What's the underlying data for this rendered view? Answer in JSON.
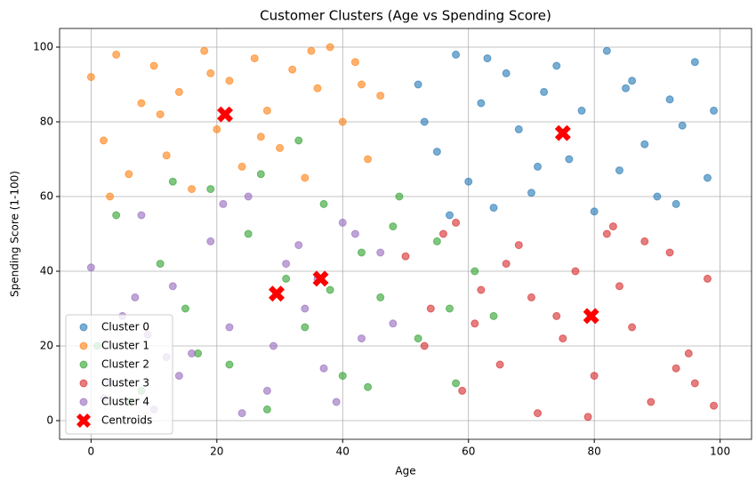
{
  "chart_data": {
    "type": "scatter",
    "title": "Customer Clusters (Age vs Spending Score)",
    "x_label": "Age",
    "y_label": "Spending Score (1-100)",
    "xlim": [
      -5,
      105
    ],
    "ylim": [
      -5,
      105
    ],
    "xticks": [
      0,
      20,
      40,
      60,
      80,
      100
    ],
    "yticks": [
      0,
      20,
      40,
      60,
      80,
      100
    ],
    "grid": true,
    "legend": "lower left",
    "series": [
      {
        "name": "Cluster 0",
        "color": "#1f77b4",
        "marker": "o",
        "x": [
          52,
          55,
          58,
          60,
          62,
          64,
          66,
          68,
          70,
          72,
          74,
          76,
          78,
          80,
          82,
          84,
          86,
          88,
          90,
          92,
          94,
          96,
          98,
          99,
          57,
          63,
          71,
          85,
          93,
          53
        ],
        "values": [
          90,
          72,
          98,
          64,
          85,
          57,
          93,
          78,
          61,
          88,
          95,
          70,
          83,
          56,
          99,
          67,
          91,
          74,
          60,
          86,
          79,
          96,
          65,
          83,
          55,
          97,
          68,
          89,
          58,
          80
        ]
      },
      {
        "name": "Cluster 1",
        "color": "#ff7f0e",
        "marker": "o",
        "x": [
          0,
          2,
          4,
          6,
          8,
          10,
          12,
          14,
          16,
          18,
          20,
          22,
          24,
          26,
          28,
          30,
          32,
          34,
          36,
          38,
          40,
          42,
          44,
          46,
          3,
          11,
          19,
          27,
          35,
          43
        ],
        "values": [
          92,
          75,
          98,
          66,
          85,
          95,
          71,
          88,
          62,
          99,
          78,
          91,
          68,
          97,
          83,
          73,
          94,
          65,
          89,
          100,
          80,
          96,
          70,
          87,
          60,
          82,
          93,
          76,
          99,
          90
        ]
      },
      {
        "name": "Cluster 2",
        "color": "#2ca02c",
        "marker": "o",
        "x": [
          1,
          4,
          8,
          11,
          15,
          19,
          22,
          25,
          28,
          31,
          34,
          37,
          40,
          43,
          46,
          49,
          52,
          55,
          58,
          61,
          64,
          6,
          17,
          27,
          38,
          48,
          57,
          13,
          33,
          44
        ],
        "values": [
          20,
          55,
          8,
          42,
          30,
          62,
          15,
          50,
          3,
          38,
          25,
          58,
          12,
          45,
          33,
          60,
          22,
          48,
          10,
          40,
          28,
          5,
          18,
          66,
          35,
          52,
          30,
          64,
          75,
          9
        ]
      },
      {
        "name": "Cluster 3",
        "color": "#d62728",
        "marker": "o",
        "x": [
          50,
          53,
          56,
          59,
          62,
          65,
          68,
          71,
          74,
          77,
          80,
          83,
          86,
          89,
          92,
          95,
          98,
          99,
          61,
          70,
          79,
          88,
          96,
          54,
          66,
          75,
          84,
          93,
          58,
          82
        ],
        "values": [
          44,
          20,
          50,
          8,
          35,
          15,
          47,
          2,
          28,
          40,
          12,
          52,
          25,
          5,
          45,
          18,
          38,
          4,
          26,
          33,
          1,
          48,
          10,
          30,
          42,
          22,
          36,
          14,
          53,
          50
        ]
      },
      {
        "name": "Cluster 4",
        "color": "#9467bd",
        "marker": "o",
        "x": [
          0,
          3,
          5,
          8,
          10,
          13,
          16,
          19,
          22,
          25,
          28,
          31,
          34,
          37,
          40,
          43,
          46,
          2,
          7,
          14,
          21,
          29,
          36,
          42,
          48,
          12,
          24,
          33,
          9,
          39
        ],
        "values": [
          41,
          10,
          28,
          55,
          3,
          36,
          18,
          48,
          25,
          60,
          8,
          42,
          30,
          14,
          53,
          22,
          45,
          6,
          33,
          12,
          58,
          20,
          38,
          50,
          26,
          17,
          2,
          47,
          23,
          5
        ]
      },
      {
        "name": "Centroids",
        "color": "#ff0000",
        "marker": "X",
        "x": [
          21.3,
          75,
          29.5,
          36.5,
          79.5
        ],
        "values": [
          82,
          77,
          34,
          38,
          28
        ]
      }
    ]
  }
}
